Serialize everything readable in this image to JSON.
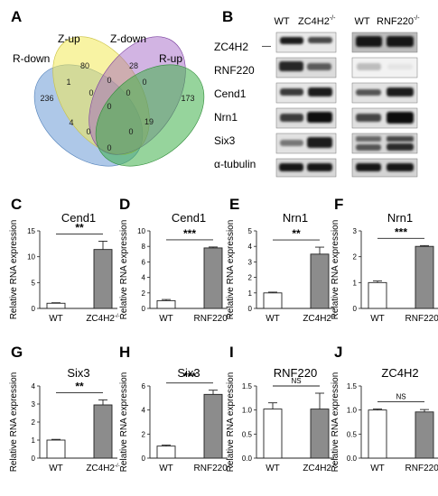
{
  "panel_labels": {
    "A": "A",
    "B": "B",
    "C": "C",
    "D": "D",
    "E": "E",
    "F": "F",
    "G": "G",
    "H": "H",
    "I": "I",
    "J": "J"
  },
  "venn": {
    "sets": [
      {
        "name": "R-down",
        "color": "#6b9bd6"
      },
      {
        "name": "Z-up",
        "color": "#f3ea57"
      },
      {
        "name": "Z-down",
        "color": "#9b59c0"
      },
      {
        "name": "R-up",
        "color": "#3fb04a"
      }
    ],
    "regions": [
      "236",
      "80",
      "28",
      "173",
      "1",
      "0",
      "0",
      "0",
      "0",
      "0",
      "4",
      "0",
      "19",
      "0",
      "0"
    ]
  },
  "blots": {
    "headers": {
      "wt1": "WT",
      "ko1": "ZC4H2",
      "ko1_sup": "-/-",
      "wt2": "WT",
      "ko2": "RNF220",
      "ko2_sup": "-/-"
    },
    "rows": [
      "ZC4H2",
      "RNF220",
      "Cend1",
      "Nrn1",
      "Six3",
      "α-tubulin"
    ],
    "zc4h2_marker": "—"
  },
  "chart_data": [
    {
      "panel": "C",
      "type": "bar",
      "title": "Cend1",
      "ylabel": "Relative RNA expression",
      "categories": [
        "WT",
        "ZC4H2"
      ],
      "category_sup": [
        "",
        "-/-"
      ],
      "values": [
        1.0,
        11.4
      ],
      "errors": [
        0.1,
        1.6
      ],
      "ylim": [
        0,
        15
      ],
      "yticks": [
        "0",
        "5",
        "10",
        "15"
      ],
      "significance": "**",
      "colors": [
        "#ffffff",
        "#8c8c8c"
      ]
    },
    {
      "panel": "D",
      "type": "bar",
      "title": "Cend1",
      "ylabel": "Relative RNA expression",
      "categories": [
        "WT",
        "RNF220"
      ],
      "category_sup": [
        "",
        "-/-"
      ],
      "values": [
        1.0,
        7.8
      ],
      "errors": [
        0.15,
        0.12
      ],
      "ylim": [
        0,
        10
      ],
      "yticks": [
        "0",
        "2",
        "4",
        "6",
        "8",
        "10"
      ],
      "significance": "***",
      "colors": [
        "#ffffff",
        "#8c8c8c"
      ]
    },
    {
      "panel": "E",
      "type": "bar",
      "title": "Nrn1",
      "ylabel": "Relative RNA expression",
      "categories": [
        "WT",
        "ZC4H2"
      ],
      "category_sup": [
        "",
        "-/-"
      ],
      "values": [
        1.0,
        3.5
      ],
      "errors": [
        0.05,
        0.45
      ],
      "ylim": [
        0,
        5
      ],
      "yticks": [
        "0",
        "1",
        "2",
        "3",
        "4",
        "5"
      ],
      "significance": "**",
      "colors": [
        "#ffffff",
        "#8c8c8c"
      ]
    },
    {
      "panel": "F",
      "type": "bar",
      "title": "Nrn1",
      "ylabel": "Relative RNA expression",
      "categories": [
        "WT",
        "RNF220"
      ],
      "category_sup": [
        "",
        "-/-"
      ],
      "values": [
        1.0,
        2.4
      ],
      "errors": [
        0.06,
        0.03
      ],
      "ylim": [
        0,
        3
      ],
      "yticks": [
        "0",
        "1",
        "2",
        "3"
      ],
      "significance": "***",
      "colors": [
        "#ffffff",
        "#8c8c8c"
      ]
    },
    {
      "panel": "G",
      "type": "bar",
      "title": "Six3",
      "ylabel": "Relative RNA expression",
      "categories": [
        "WT",
        "ZC4H2"
      ],
      "category_sup": [
        "",
        "-/-"
      ],
      "values": [
        1.0,
        2.95
      ],
      "errors": [
        0.04,
        0.28
      ],
      "ylim": [
        0,
        4
      ],
      "yticks": [
        "0",
        "1",
        "2",
        "3",
        "4"
      ],
      "significance": "**",
      "colors": [
        "#ffffff",
        "#8c8c8c"
      ]
    },
    {
      "panel": "H",
      "type": "bar",
      "title": "Six3",
      "ylabel": "Relative RNA expression",
      "categories": [
        "WT",
        "RNF220"
      ],
      "category_sup": [
        "",
        "-/-"
      ],
      "values": [
        1.0,
        5.3
      ],
      "errors": [
        0.08,
        0.35
      ],
      "ylim": [
        0,
        6
      ],
      "yticks": [
        "0",
        "2",
        "4",
        "6"
      ],
      "significance": "***",
      "colors": [
        "#ffffff",
        "#8c8c8c"
      ]
    },
    {
      "panel": "I",
      "type": "bar",
      "title": "RNF220",
      "ylabel": "Relative RNA expression",
      "categories": [
        "WT",
        "ZC4H2"
      ],
      "category_sup": [
        "",
        "-/-"
      ],
      "values": [
        1.02,
        1.02
      ],
      "errors": [
        0.13,
        0.33
      ],
      "ylim": [
        0,
        1.5
      ],
      "yticks": [
        "0.0",
        "0.5",
        "1.0",
        "1.5"
      ],
      "significance": "NS",
      "colors": [
        "#ffffff",
        "#8c8c8c"
      ]
    },
    {
      "panel": "J",
      "type": "bar",
      "title": "ZC4H2",
      "ylabel": "Relative RNA expression",
      "categories": [
        "WT",
        "RNF220"
      ],
      "category_sup": [
        "",
        "-/-"
      ],
      "values": [
        1.0,
        0.96
      ],
      "errors": [
        0.02,
        0.05
      ],
      "ylim": [
        0,
        1.5
      ],
      "yticks": [
        "0.0",
        "0.5",
        "1.0",
        "1.5"
      ],
      "significance": "NS",
      "colors": [
        "#ffffff",
        "#8c8c8c"
      ]
    }
  ]
}
